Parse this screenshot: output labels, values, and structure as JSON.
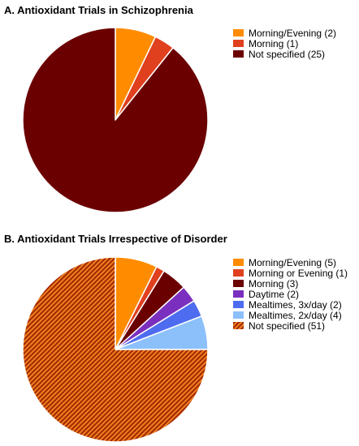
{
  "chart_data": [
    {
      "type": "pie",
      "title": "A. Antioxidant Trials in Schizophrenia",
      "legend_position": "right",
      "slices": [
        {
          "label": "Morning/Evening (2)",
          "value": 2,
          "color": "#FF8C00"
        },
        {
          "label": "Morning (1)",
          "value": 1,
          "color": "#E0401E"
        },
        {
          "label": "Not specified (25)",
          "value": 25,
          "color": "#6B0000"
        }
      ]
    },
    {
      "type": "pie",
      "title": "B. Antioxidant Trials Irrespective of  Disorder",
      "legend_position": "right",
      "slices": [
        {
          "label": "Morning/Evening (5)",
          "value": 5,
          "color": "#FF8C00"
        },
        {
          "label": "Morning or Evening (1)",
          "value": 1,
          "color": "#E0401E"
        },
        {
          "label": "Morning (3)",
          "value": 3,
          "color": "#6B0000"
        },
        {
          "label": "Daytime (2)",
          "value": 2,
          "color": "#7B2FBE"
        },
        {
          "label": "Mealtimes, 3x/day (2)",
          "value": 2,
          "color": "#4D6CF0"
        },
        {
          "label": "Mealtimes, 2x/day (4)",
          "value": 4,
          "color": "#8CC0FA"
        },
        {
          "label": "Not specified (51)",
          "value": 51,
          "color": "#C8400A",
          "pattern": "diagonal-hatch"
        }
      ]
    }
  ]
}
